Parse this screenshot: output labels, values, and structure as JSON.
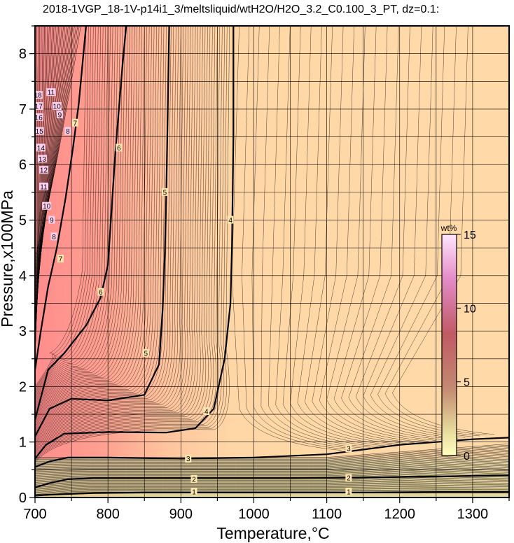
{
  "chart_data": {
    "type": "heatmap",
    "title": "2018-1VGP_18-1V-p14i1_3/meltsliquid/wtH2O/H2O_3.2_C0.100_3_PT, dz=0.1:",
    "xlabel": "Temperature,°C",
    "ylabel": "Pressure,x100MPa",
    "xlim": [
      700,
      1350
    ],
    "ylim": [
      0,
      8.5
    ],
    "xticks": [
      "700",
      "800",
      "900",
      "1000",
      "1100",
      "1200",
      "1300"
    ],
    "yticks": [
      "0",
      "1",
      "2",
      "3",
      "4",
      "5",
      "6",
      "7",
      "8"
    ],
    "grid": true,
    "colorbar": {
      "unit": "wt%",
      "range": [
        0,
        15
      ],
      "ticks": [
        "0",
        "5",
        "10",
        "15"
      ],
      "placement": "right-inside"
    },
    "contours_major": [
      {
        "level": "1",
        "x": [
          700,
          720,
          740,
          780,
          850,
          950,
          1050,
          1150,
          1250,
          1350
        ],
        "y": [
          0.04,
          0.05,
          0.06,
          0.08,
          0.09,
          0.09,
          0.09,
          0.09,
          0.1,
          0.1
        ]
      },
      {
        "level": "2",
        "x": [
          700,
          720,
          745,
          780,
          850,
          950,
          1050,
          1150,
          1250,
          1350
        ],
        "y": [
          0.18,
          0.26,
          0.33,
          0.35,
          0.35,
          0.35,
          0.35,
          0.36,
          0.38,
          0.4
        ]
      },
      {
        "level": "3",
        "x": [
          700,
          720,
          745,
          800,
          900,
          1000,
          1100,
          1200,
          1300,
          1350
        ],
        "y": [
          0.55,
          0.65,
          0.72,
          0.72,
          0.7,
          0.72,
          0.78,
          0.95,
          1.05,
          1.08
        ]
      },
      {
        "level": "4",
        "x": [
          700,
          715,
          740,
          800,
          880,
          920,
          945,
          960,
          968,
          970,
          972,
          972
        ],
        "y": [
          0.7,
          0.95,
          1.15,
          1.18,
          1.17,
          1.25,
          1.6,
          2.5,
          3.5,
          4.5,
          6.5,
          8.5
        ]
      },
      {
        "level": "5",
        "x": [
          700,
          720,
          750,
          800,
          850,
          870,
          875,
          878,
          880,
          882,
          884
        ],
        "y": [
          1.1,
          1.6,
          1.78,
          1.75,
          1.85,
          2.4,
          3.4,
          4.4,
          5.5,
          7,
          8.5
        ]
      },
      {
        "level": "6",
        "x": [
          700,
          718,
          740,
          770,
          790,
          800,
          805,
          810,
          815,
          820,
          825
        ],
        "y": [
          1.4,
          2.3,
          2.6,
          3.1,
          3.6,
          4.2,
          5.2,
          6.2,
          7,
          7.8,
          8.5
        ]
      },
      {
        "level": "7",
        "x": [
          700,
          708,
          718,
          730,
          742,
          752,
          760,
          770
        ],
        "y": [
          2.3,
          3.0,
          3.8,
          4.5,
          5.4,
          6.3,
          7.1,
          8.5
        ]
      }
    ],
    "contour_labels": [
      {
        "text": "1",
        "x": 918,
        "y": 0.1
      },
      {
        "text": "1",
        "x": 1130,
        "y": 0.1
      },
      {
        "text": "2",
        "x": 918,
        "y": 0.33
      },
      {
        "text": "2",
        "x": 1130,
        "y": 0.35
      },
      {
        "text": "3",
        "x": 910,
        "y": 0.7
      },
      {
        "text": "3",
        "x": 1130,
        "y": 0.88
      },
      {
        "text": "4",
        "x": 935,
        "y": 1.55
      },
      {
        "text": "4",
        "x": 968,
        "y": 5.0
      },
      {
        "text": "5",
        "x": 852,
        "y": 2.6
      },
      {
        "text": "5",
        "x": 878,
        "y": 5.5
      },
      {
        "text": "6",
        "x": 790,
        "y": 3.7
      },
      {
        "text": "6",
        "x": 815,
        "y": 6.3
      },
      {
        "text": "7",
        "x": 735,
        "y": 4.3
      },
      {
        "text": "7",
        "x": 755,
        "y": 6.75
      },
      {
        "text": "8",
        "x": 726,
        "y": 4.7
      },
      {
        "text": "8",
        "x": 745,
        "y": 6.6
      },
      {
        "text": "9",
        "x": 723,
        "y": 5.0
      },
      {
        "text": "9",
        "x": 734,
        "y": 6.9
      },
      {
        "text": "10",
        "x": 716,
        "y": 5.25
      },
      {
        "text": "10",
        "x": 730,
        "y": 7.05
      },
      {
        "text": "11",
        "x": 712,
        "y": 5.6
      },
      {
        "text": "11",
        "x": 722,
        "y": 7.3
      },
      {
        "text": "12",
        "x": 712,
        "y": 5.9
      },
      {
        "text": "13",
        "x": 710,
        "y": 6.1
      },
      {
        "text": "14",
        "x": 708,
        "y": 6.3
      },
      {
        "text": "15",
        "x": 706,
        "y": 6.6
      },
      {
        "text": "16",
        "x": 705,
        "y": 6.85
      },
      {
        "text": "17",
        "x": 705,
        "y": 7.05
      },
      {
        "text": "18",
        "x": 704,
        "y": 7.25
      }
    ]
  },
  "colors": {
    "background_low": "#ffd9a8",
    "background_mid": "#ffb08a",
    "background_high": "#ff9999",
    "background_band": "#e5d8a2",
    "colorbar_low": "#ffffc0",
    "colorbar_mid": "#c89a78",
    "colorbar_high": "#ffe0ff"
  }
}
